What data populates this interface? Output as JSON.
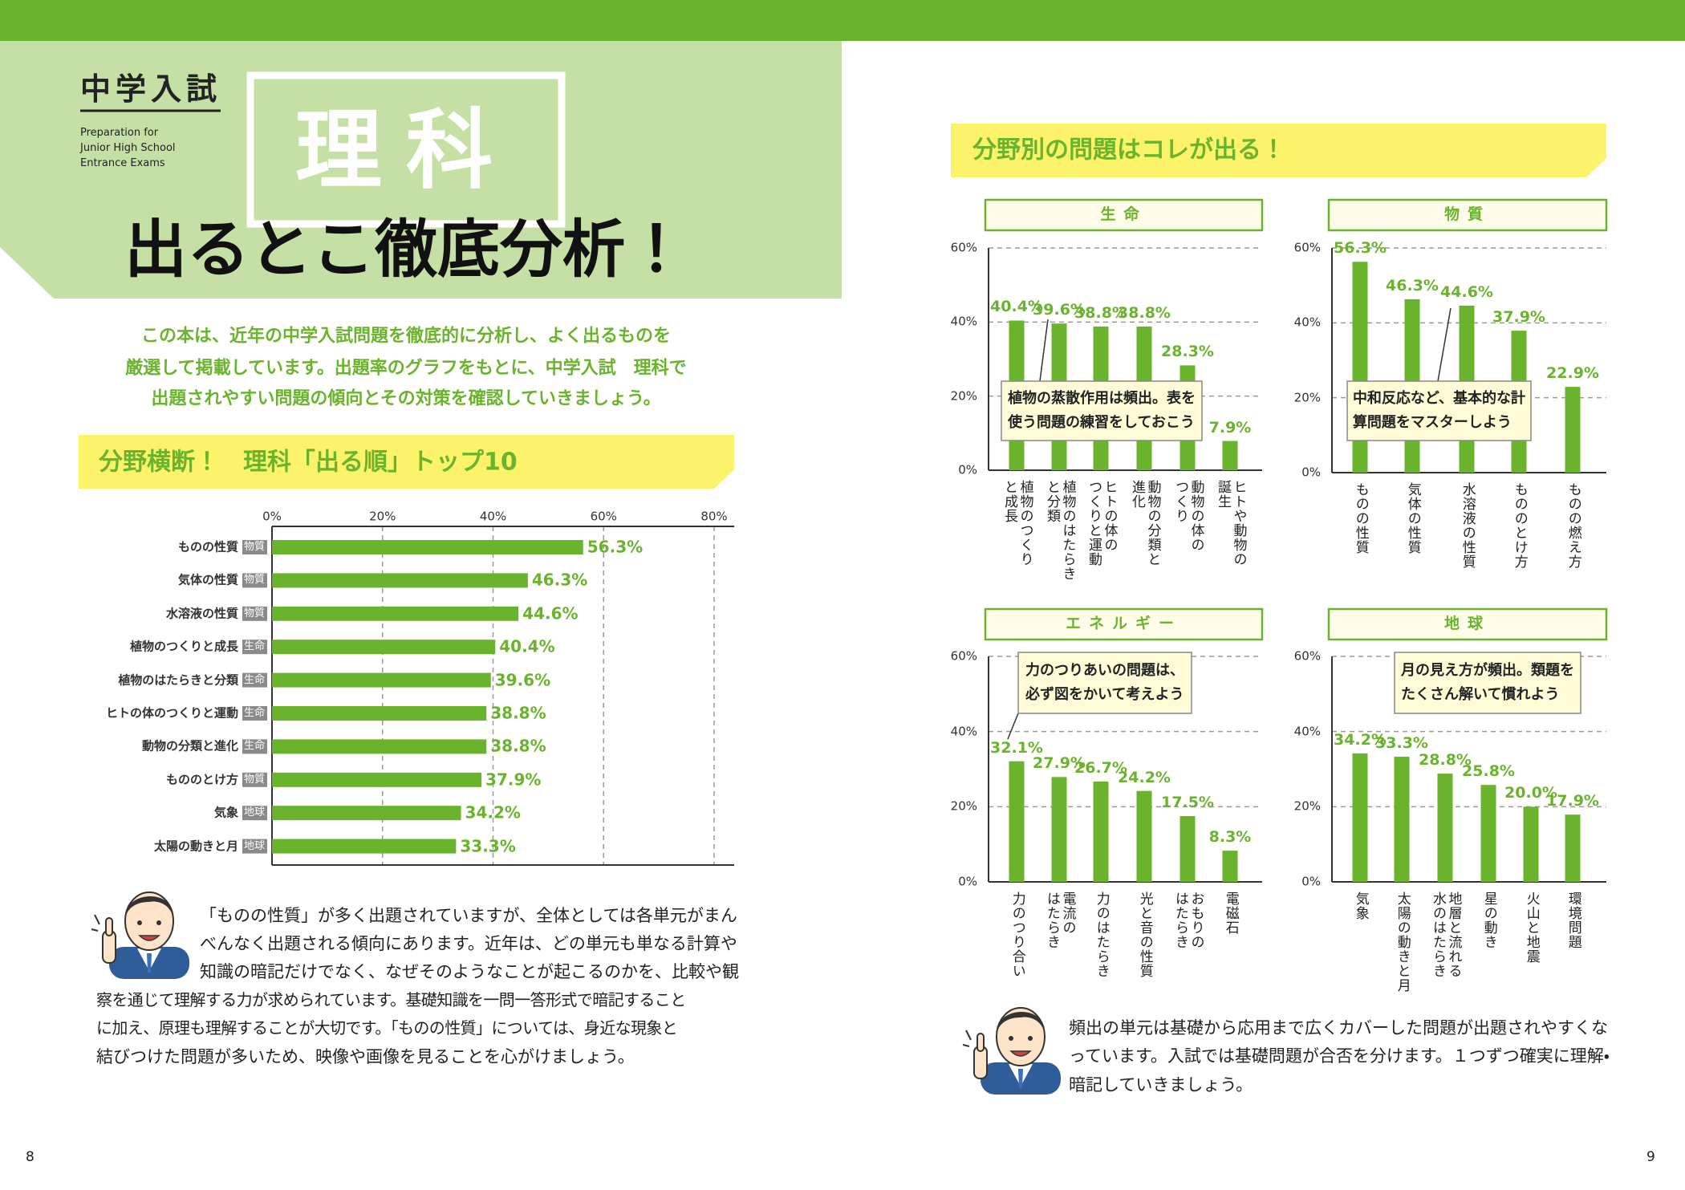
{
  "header": {
    "label": "中学入試",
    "subtitle": [
      "Preparation for",
      "Junior High School",
      "Entrance Exams"
    ],
    "subject": "理科",
    "title": "出るとこ徹底分析！"
  },
  "intro": [
    "この本は、近年の中学入試問題を徹底的に分析し、よく出るものを",
    "厳選して掲載しています。出題率のグラフをもとに、中学入試　理科で",
    "出題されやすい問題の傾向とその対策を確認していきましょう。"
  ],
  "section_heading": "分野横断！　理科「出る順」トップ10",
  "comment": [
    "「ものの性質」が多く出題されていますが、全体としては各単元がまん",
    "べんなく出題される傾向にあります。近年は、どの単元も単なる計算や",
    "知識の暗記だけでなく、なぜそのようなことが起こるのかを、比較や観",
    "察を通じて理解する力が求められています。基礎知識を一問一答形式で暗記すること",
    "に加え、原理も理解することが大切です。「ものの性質」については、身近な現象と",
    "結びつけた問題が多いため、映像や画像を見ることを心がけましょう。"
  ],
  "section2_heading": "分野別の問題はコレが出る！",
  "comment2": [
    "頻出の単元は基礎から応用まで広くカバーした問題が出題されやすくな",
    "っています。入試では基礎問題が合否を分けます。１つずつ確実に理解・",
    "暗記していきましょう。"
  ],
  "page_numbers": [
    "8",
    "9"
  ],
  "chart_data": [
    {
      "type": "bar",
      "orientation": "horizontal",
      "color": "#6ab42d",
      "categories": [
        "ものの性質",
        "気体の性質",
        "水溶液の性質",
        "植物のつくりと成長",
        "植物のはたらきと分類",
        "ヒトの体のつくりと運動",
        "動物の分類と進化",
        "もののとけ方",
        "気象",
        "太陽の動きと月"
      ],
      "tags": [
        "物質",
        "物質",
        "物質",
        "生命",
        "生命",
        "生命",
        "生命",
        "物質",
        "地球",
        "地球"
      ],
      "values": [
        56.3,
        46.3,
        44.6,
        40.4,
        39.6,
        38.8,
        38.8,
        37.9,
        34.2,
        33.3
      ],
      "value_labels": [
        "56.3%",
        "46.3%",
        "44.6%",
        "40.4%",
        "39.6%",
        "38.8%",
        "38.8%",
        "37.9%",
        "34.2%",
        "33.3%"
      ],
      "xlim": [
        0,
        80
      ],
      "xticks": [
        {
          "value": 0,
          "label": "0%"
        },
        {
          "value": 20,
          "label": "20%"
        },
        {
          "value": 40,
          "label": "40%"
        },
        {
          "value": 60,
          "label": "60%"
        },
        {
          "value": 80,
          "label": "80%"
        }
      ],
      "grid": true
    },
    {
      "type": "bar",
      "title": "生命",
      "color": "#6ab42d",
      "categories": [
        "植物のつくり\nと成長",
        "植物のはたらき\nと分類",
        "ヒトの体の\nつくりと運動",
        "動物の分類と\n進化",
        "動物の体の\nつくり",
        "ヒトや動物の\n誕生"
      ],
      "values": [
        40.4,
        39.6,
        38.8,
        38.8,
        28.3,
        7.9
      ],
      "value_labels": [
        "40.4%",
        "39.6%",
        "38.8%",
        "38.8%",
        "28.3%",
        "7.9%"
      ],
      "ylim": [
        0,
        60
      ],
      "yticks": [
        {
          "value": 0,
          "label": "0%"
        },
        {
          "value": 20,
          "label": "20%"
        },
        {
          "value": 40,
          "label": "40%"
        },
        {
          "value": 60,
          "label": "60%"
        }
      ],
      "grid": true,
      "annotation": "植物の蒸散作用は頻出。表を\n使う問題の練習をしておこう"
    },
    {
      "type": "bar",
      "title": "物質",
      "color": "#6ab42d",
      "categories": [
        "ものの性質",
        "気体の性質",
        "水溶液の性質",
        "もののとけ方",
        "ものの燃え方"
      ],
      "values": [
        56.3,
        46.3,
        44.6,
        37.9,
        22.9
      ],
      "value_labels": [
        "56.3%",
        "46.3%",
        "44.6%",
        "37.9%",
        "22.9%"
      ],
      "ylim": [
        0,
        60
      ],
      "yticks": [
        {
          "value": 0,
          "label": "0%"
        },
        {
          "value": 20,
          "label": "20%"
        },
        {
          "value": 40,
          "label": "40%"
        },
        {
          "value": 60,
          "label": "60%"
        }
      ],
      "grid": true,
      "annotation": "中和反応など、基本的な計\n算問題をマスターしよう"
    },
    {
      "type": "bar",
      "title": "エネルギー",
      "color": "#6ab42d",
      "categories": [
        "力のつり合い",
        "電流の\nはたらき",
        "力のはたらき",
        "光と音の性質",
        "おもりの\nはたらき",
        "電磁石"
      ],
      "values": [
        32.1,
        27.9,
        26.7,
        24.2,
        17.5,
        8.3
      ],
      "value_labels": [
        "32.1%",
        "27.9%",
        "26.7%",
        "24.2%",
        "17.5%",
        "8.3%"
      ],
      "ylim": [
        0,
        60
      ],
      "yticks": [
        {
          "value": 0,
          "label": "0%"
        },
        {
          "value": 20,
          "label": "20%"
        },
        {
          "value": 40,
          "label": "40%"
        },
        {
          "value": 60,
          "label": "60%"
        }
      ],
      "grid": true,
      "annotation": "力のつりあいの問題は、\n必ず図をかいて考えよう"
    },
    {
      "type": "bar",
      "title": "地球",
      "color": "#6ab42d",
      "categories": [
        "気象",
        "太陽の動きと月",
        "地層と流れる\n水のはたらき",
        "星の動き",
        "火山と地震",
        "環境問題"
      ],
      "values": [
        34.2,
        33.3,
        28.8,
        25.8,
        20.0,
        17.9
      ],
      "value_labels": [
        "34.2%",
        "33.3%",
        "28.8%",
        "25.8%",
        "20.0%",
        "17.9%"
      ],
      "ylim": [
        0,
        60
      ],
      "yticks": [
        {
          "value": 0,
          "label": "0%"
        },
        {
          "value": 20,
          "label": "20%"
        },
        {
          "value": 40,
          "label": "40%"
        },
        {
          "value": 60,
          "label": "60%"
        }
      ],
      "grid": true,
      "annotation": "月の見え方が頻出。類題を\nたくさん解いて慣れよう"
    }
  ]
}
